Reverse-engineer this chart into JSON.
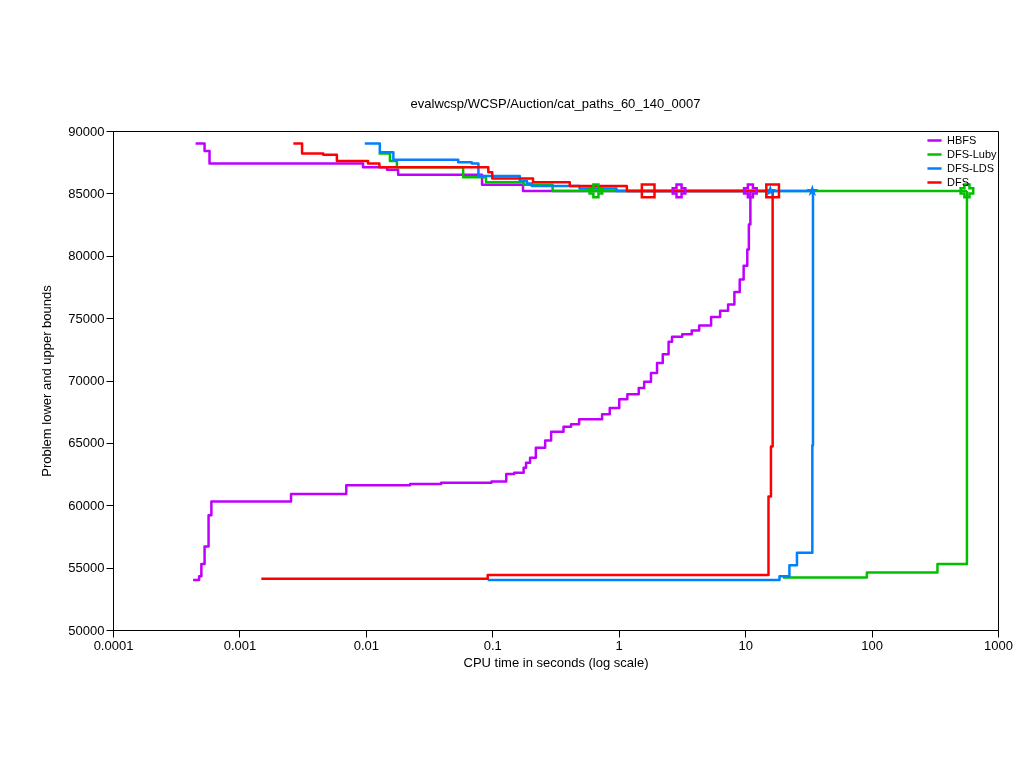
{
  "chart_data": {
    "type": "step",
    "title": "evalwcsp/WCSP/Auction/cat_paths_60_140_0007",
    "xlabel": "CPU time in seconds (log scale)",
    "ylabel": "Problem lower and upper bounds",
    "log": "x",
    "xlim": [
      0.0001,
      1000
    ],
    "xticks": [
      0.0001,
      0.001,
      0.01,
      0.1,
      1,
      10,
      100,
      1000
    ],
    "ylim": [
      50000,
      90000
    ],
    "yticks": [
      50000,
      55000,
      60000,
      65000,
      70000,
      75000,
      80000,
      85000,
      90000
    ],
    "grid": false,
    "legend": "top right",
    "series": [
      {
        "name": "HBFS",
        "color": "#bf00ff",
        "x": [
          0.00045,
          0.00053,
          0.00058,
          0.0095,
          0.0147,
          0.018,
          0.083,
          0.175,
          11
        ],
        "values": [
          89000,
          88400,
          87400,
          87100,
          86900,
          86500,
          85700,
          85200,
          85200
        ]
      },
      {
        "name": "DFS-Luby",
        "color": "#00c000",
        "x": [
          0.0126,
          0.0155,
          0.0176,
          0.0588,
          0.0892,
          0.177,
          0.3,
          568
        ],
        "values": [
          88200,
          87600,
          87100,
          86300,
          85900,
          85700,
          85200,
          85200
        ]
      },
      {
        "name": "DFS-LDS",
        "color": "#0080ff",
        "x": [
          0.0098,
          0.0129,
          0.0165,
          0.0538,
          0.0688,
          0.0777,
          0.165,
          0.188,
          0.205,
          0.49,
          0.96,
          34.4
        ],
        "values": [
          89000,
          88300,
          87700,
          87500,
          87400,
          86400,
          86000,
          85800,
          85600,
          85400,
          85200,
          85200
        ]
      },
      {
        "name": "DFS",
        "color": "#ff0000",
        "x": [
          0.00267,
          0.00313,
          0.0046,
          0.0059,
          0.0104,
          0.0128,
          0.093,
          0.1,
          0.21,
          0.41,
          1.16,
          16.5
        ],
        "values": [
          89000,
          88200,
          88100,
          87600,
          87400,
          87100,
          86700,
          86200,
          85900,
          85600,
          85200,
          85200
        ]
      },
      {
        "color": "#bf00ff",
        "x": [
          0.00043,
          0.00048,
          0.0005,
          0.00053,
          0.00057,
          0.0006,
          0.00256,
          0.007,
          0.0224,
          0.0394,
          0.0986,
          0.129,
          0.149,
          0.177,
          0.185,
          0.199,
          0.221,
          0.262,
          0.292,
          0.366,
          0.42,
          0.486,
          0.739,
          0.849,
          1.01,
          1.17,
          1.44,
          1.59,
          1.8,
          2.01,
          2.23,
          2.48,
          2.64,
          3.18,
          3.78,
          4.33,
          5.38,
          6.34,
          7.33,
          8.22,
          9.06,
          9.73,
          10.4,
          10.7,
          11
        ],
        "values": [
          54000,
          54300,
          55300,
          56700,
          59200,
          60300,
          60900,
          61600,
          61700,
          61800,
          61900,
          62500,
          62600,
          63000,
          63400,
          63800,
          64600,
          65200,
          65900,
          66300,
          66500,
          66900,
          67300,
          67800,
          68500,
          68900,
          69400,
          69900,
          70600,
          71400,
          72100,
          73100,
          73500,
          73700,
          74000,
          74400,
          75100,
          75600,
          76100,
          77100,
          78100,
          79200,
          80500,
          82500,
          85200
        ]
      },
      {
        "color": "#00c000",
        "x": [
          19.9,
          91.8,
          332,
          568
        ],
        "values": [
          54200,
          54600,
          55300,
          85200
        ]
      },
      {
        "color": "#0080ff",
        "x": [
          0.092,
          18.7,
          22.4,
          25.7,
          34,
          34.4
        ],
        "values": [
          54000,
          54300,
          55200,
          56200,
          64800,
          85200
        ]
      },
      {
        "color": "#ff0000",
        "x": [
          0.00149,
          0.092,
          15.3,
          16,
          16.5
        ],
        "values": [
          54100,
          54400,
          60700,
          64700,
          85200
        ]
      },
      {
        "type": "scatter",
        "marker": "cross",
        "color": "#bf00ff",
        "x": [
          3,
          11
        ],
        "values": [
          85200,
          85200
        ]
      },
      {
        "type": "scatter",
        "marker": "cross",
        "color": "#00c000",
        "x": [
          0.66,
          568
        ],
        "values": [
          85200,
          85200
        ]
      },
      {
        "type": "scatter",
        "marker": "star",
        "color": "#0080ff",
        "x": [
          15.8,
          34
        ],
        "values": [
          85200,
          85200
        ]
      },
      {
        "type": "scatter",
        "marker": "square",
        "color": "#ff0000",
        "x": [
          1.71,
          16.5
        ],
        "values": [
          85200,
          85200
        ]
      }
    ]
  }
}
